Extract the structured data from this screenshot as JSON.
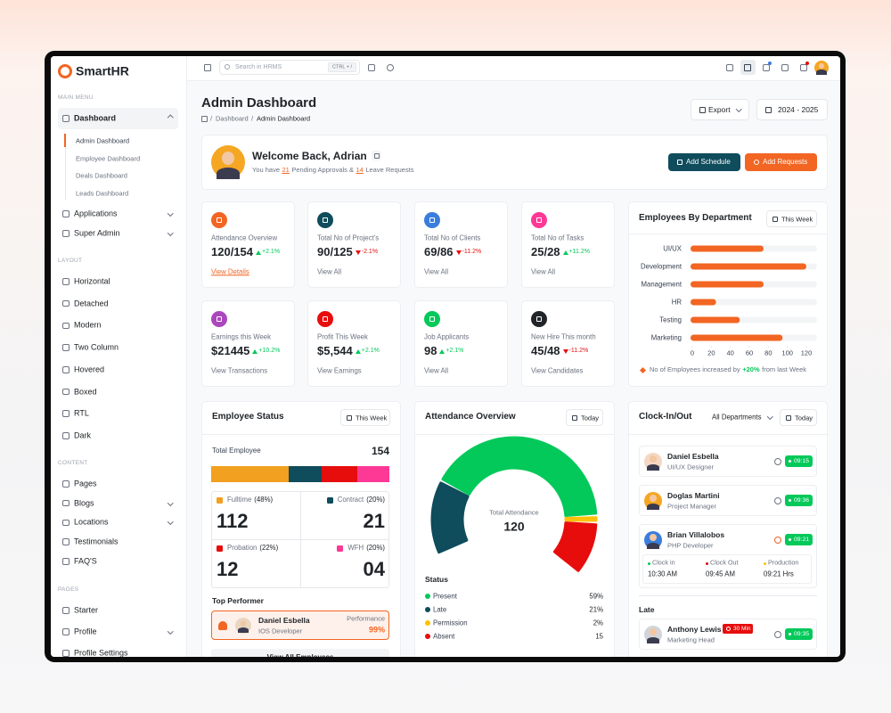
{
  "brand": "SmartHR",
  "topbar": {
    "search": "Search in HRMS",
    "shortcut": "CTRL + /"
  },
  "sidebar": {
    "sections": [
      {
        "title": "MAIN MENU",
        "items": [
          {
            "label": "Dashboard",
            "expandable": true,
            "active": true,
            "children": [
              "Admin Dashboard",
              "Employee Dashboard",
              "Deals Dashboard",
              "Leads Dashboard"
            ]
          },
          {
            "label": "Applications",
            "expandable": true
          },
          {
            "label": "Super Admin",
            "expandable": true
          }
        ]
      },
      {
        "title": "LAYOUT",
        "items": [
          {
            "label": "Horizontal"
          },
          {
            "label": "Detached"
          },
          {
            "label": "Modern"
          },
          {
            "label": "Two Column"
          },
          {
            "label": "Hovered"
          },
          {
            "label": "Boxed"
          },
          {
            "label": "RTL"
          },
          {
            "label": "Dark"
          }
        ]
      },
      {
        "title": "CONTENT",
        "items": [
          {
            "label": "Pages"
          },
          {
            "label": "Blogs",
            "expandable": true
          },
          {
            "label": "Locations",
            "expandable": true
          },
          {
            "label": "Testimonials"
          },
          {
            "label": "FAQ'S"
          }
        ]
      },
      {
        "title": "PAGES",
        "items": [
          {
            "label": "Starter"
          },
          {
            "label": "Profile",
            "expandable": true
          },
          {
            "label": "Profile Settings"
          }
        ]
      }
    ]
  },
  "header": {
    "title": "Admin Dashboard",
    "breadcrumb": [
      "Dashboard",
      "Admin Dashboard"
    ],
    "separator": "/",
    "export": "Export",
    "period": "2024 - 2025"
  },
  "welcome": {
    "title": "Welcome Back, Adrian",
    "text": [
      "You have",
      "21",
      "Pending Approvals &",
      "14",
      "Leave Requests"
    ],
    "buttons": [
      "Add Schedule",
      "Add Requests"
    ]
  },
  "stats": [
    {
      "label": "Attendance Overview",
      "value": "120/154",
      "change": "+2.1%",
      "trend": "up",
      "link": "View Details",
      "link_highlight": true,
      "color": "#f26522"
    },
    {
      "label": "Total No of Project's",
      "value": "90/125",
      "change": "-2.1%",
      "trend": "down",
      "link": "View All",
      "color": "#0f4c5c"
    },
    {
      "label": "Total No of Clients",
      "value": "69/86",
      "change": "-11.2%",
      "trend": "down",
      "link": "View All",
      "color": "#3b7ddd"
    },
    {
      "label": "Total No of Tasks",
      "value": "25/28",
      "change": "+11.2%",
      "trend": "up",
      "link": "View All",
      "color": "#fd3995"
    },
    {
      "label": "Earnings this Week",
      "value": "$21445",
      "change": "+10.2%",
      "trend": "up",
      "link": "View Transactions",
      "color": "#ab47bc"
    },
    {
      "label": "Profit This Week",
      "value": "$5,544",
      "change": "+2.1%",
      "trend": "up",
      "link": "View Earnings",
      "color": "#e70d0d"
    },
    {
      "label": "Job Applicants",
      "value": "98",
      "change": "+2.1%",
      "trend": "up",
      "link": "View All",
      "color": "#03c95a"
    },
    {
      "label": "New Hire This month",
      "value": "45/48",
      "change": "-11.2%",
      "trend": "down",
      "link": "View Candidates",
      "color": "#212529"
    }
  ],
  "departments": {
    "title": "Employees By Department",
    "filter": "This Week",
    "chart_data": {
      "type": "bar",
      "orientation": "horizontal",
      "categories": [
        "UI/UX",
        "Development",
        "Management",
        "HR",
        "Testing",
        "Marketing"
      ],
      "values": [
        75,
        120,
        75,
        25,
        50,
        95
      ],
      "color": "#f26522",
      "xlim": [
        0,
        120
      ],
      "xticks": [
        0,
        20,
        40,
        60,
        80,
        100,
        120
      ]
    },
    "note": [
      "No of Employees increased by",
      "+20%",
      "from last Week"
    ]
  },
  "employee_status": {
    "title": "Employee Status",
    "filter": "This Week",
    "total_label": "Total Employee",
    "total": 154,
    "groups": [
      {
        "name": "Fulltime",
        "share": 48,
        "share_label": "(48%)",
        "count": "112",
        "color": "#f1a020"
      },
      {
        "name": "Contract",
        "share": 20,
        "share_label": "(20%)",
        "count": "21",
        "color": "#0f4c5c"
      },
      {
        "name": "Probation",
        "share": 22,
        "share_label": "(22%)",
        "count": "12",
        "color": "#e70d0d"
      },
      {
        "name": "WFH",
        "share": 20,
        "share_label": "(20%)",
        "count": "04",
        "color": "#fd3995"
      }
    ],
    "top_title": "Top Performer",
    "top": {
      "name": "Daniel Esbella",
      "role": "IOS Developer",
      "metric": "Performance",
      "score": "99%"
    },
    "view_all": "View All Employees"
  },
  "attendance": {
    "title": "Attendance Overview",
    "filter": "Today",
    "center_label": "Total Attendance",
    "total": 120,
    "status_title": "Status",
    "chart_data": {
      "type": "donut",
      "categories": [
        "Present",
        "Late",
        "Permission",
        "Absent"
      ],
      "values": [
        59,
        21,
        2,
        15
      ],
      "value_labels": [
        "59%",
        "21%",
        "2%",
        "15"
      ],
      "colors": [
        "#03c95a",
        "#0f4c5c",
        "#ffc107",
        "#e70d0d"
      ]
    }
  },
  "clock": {
    "title": "Clock-In/Out",
    "department": "All Departments",
    "filter": "Today",
    "people": [
      {
        "name": "Daniel Esbella",
        "role": "UI/UX Designer",
        "time": "09:15"
      },
      {
        "name": "Doglas Martini",
        "role": "Project Manager",
        "time": "09:36"
      },
      {
        "name": "Brian Villalobos",
        "role": "PHP Developer",
        "time": "09:21",
        "details": [
          {
            "label": "Clock in",
            "value": "10:30 AM",
            "color": "#03c95a"
          },
          {
            "label": "Clock Out",
            "value": "09:45 AM",
            "color": "#e70d0d"
          },
          {
            "label": "Production",
            "value": "09:21 Hrs",
            "color": "#ffc107"
          }
        ]
      }
    ],
    "late_title": "Late",
    "late": [
      {
        "name": "Anthony Lewis",
        "role": "Marketing Head",
        "delay": "30 Min",
        "time": "09:35"
      }
    ]
  }
}
